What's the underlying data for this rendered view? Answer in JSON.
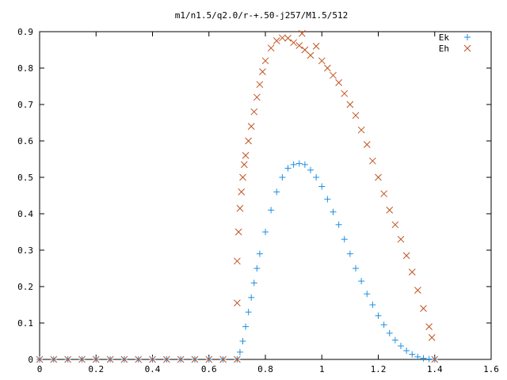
{
  "chart_data": {
    "type": "scatter",
    "title": "m1/n1.5/q2.0/r-+.50-j257/M1.5/512",
    "xlabel": "",
    "ylabel": "",
    "xlim": [
      0,
      1.6
    ],
    "ylim": [
      0,
      0.9
    ],
    "xticks": [
      0,
      0.2,
      0.4,
      0.6,
      0.8,
      1,
      1.2,
      1.4,
      1.6
    ],
    "yticks": [
      0,
      0.1,
      0.2,
      0.3,
      0.4,
      0.5,
      0.6,
      0.7,
      0.8,
      0.9
    ],
    "xtick_labels": [
      "0",
      "0.2",
      "0.4",
      "0.6",
      "0.8",
      "1",
      "1.2",
      "1.4",
      "1.6"
    ],
    "ytick_labels": [
      "0",
      "0.1",
      "0.2",
      "0.3",
      "0.4",
      "0.5",
      "0.6",
      "0.7",
      "0.8",
      "0.9"
    ],
    "grid": false,
    "legend_position": "top-right",
    "series": [
      {
        "name": "Ek",
        "marker": "plus",
        "color": "#1f8fe0",
        "points": [
          [
            0.0,
            0.0
          ],
          [
            0.05,
            0.0
          ],
          [
            0.1,
            0.0
          ],
          [
            0.15,
            0.0
          ],
          [
            0.2,
            0.0
          ],
          [
            0.25,
            0.0
          ],
          [
            0.3,
            0.0
          ],
          [
            0.35,
            0.0
          ],
          [
            0.4,
            0.0
          ],
          [
            0.45,
            0.0
          ],
          [
            0.5,
            0.0
          ],
          [
            0.55,
            0.0
          ],
          [
            0.6,
            0.0
          ],
          [
            0.65,
            0.0
          ],
          [
            0.7,
            0.0
          ],
          [
            0.71,
            0.02
          ],
          [
            0.72,
            0.05
          ],
          [
            0.73,
            0.09
          ],
          [
            0.74,
            0.13
          ],
          [
            0.75,
            0.17
          ],
          [
            0.76,
            0.21
          ],
          [
            0.77,
            0.25
          ],
          [
            0.78,
            0.29
          ],
          [
            0.8,
            0.35
          ],
          [
            0.82,
            0.41
          ],
          [
            0.84,
            0.46
          ],
          [
            0.86,
            0.5
          ],
          [
            0.88,
            0.525
          ],
          [
            0.9,
            0.535
          ],
          [
            0.92,
            0.538
          ],
          [
            0.94,
            0.535
          ],
          [
            0.96,
            0.52
          ],
          [
            0.98,
            0.5
          ],
          [
            1.0,
            0.475
          ],
          [
            1.02,
            0.44
          ],
          [
            1.04,
            0.405
          ],
          [
            1.06,
            0.37
          ],
          [
            1.08,
            0.33
          ],
          [
            1.1,
            0.29
          ],
          [
            1.12,
            0.25
          ],
          [
            1.14,
            0.215
          ],
          [
            1.16,
            0.18
          ],
          [
            1.18,
            0.15
          ],
          [
            1.2,
            0.12
          ],
          [
            1.22,
            0.095
          ],
          [
            1.24,
            0.072
          ],
          [
            1.26,
            0.053
          ],
          [
            1.28,
            0.037
          ],
          [
            1.3,
            0.024
          ],
          [
            1.32,
            0.014
          ],
          [
            1.34,
            0.007
          ],
          [
            1.36,
            0.003
          ],
          [
            1.38,
            0.001
          ],
          [
            1.4,
            0.0
          ]
        ]
      },
      {
        "name": "Eh",
        "marker": "cross",
        "color": "#c0501e",
        "points": [
          [
            0.0,
            0.0
          ],
          [
            0.05,
            0.0
          ],
          [
            0.1,
            0.0
          ],
          [
            0.15,
            0.0
          ],
          [
            0.2,
            0.0
          ],
          [
            0.25,
            0.0
          ],
          [
            0.3,
            0.0
          ],
          [
            0.35,
            0.0
          ],
          [
            0.4,
            0.0
          ],
          [
            0.45,
            0.0
          ],
          [
            0.5,
            0.0
          ],
          [
            0.55,
            0.0
          ],
          [
            0.6,
            0.0
          ],
          [
            0.65,
            0.0
          ],
          [
            0.7,
            0.0
          ],
          [
            0.7,
            0.155
          ],
          [
            0.7,
            0.27
          ],
          [
            0.705,
            0.35
          ],
          [
            0.71,
            0.415
          ],
          [
            0.715,
            0.46
          ],
          [
            0.72,
            0.5
          ],
          [
            0.725,
            0.535
          ],
          [
            0.73,
            0.56
          ],
          [
            0.74,
            0.6
          ],
          [
            0.75,
            0.64
          ],
          [
            0.76,
            0.68
          ],
          [
            0.77,
            0.72
          ],
          [
            0.78,
            0.755
          ],
          [
            0.79,
            0.79
          ],
          [
            0.8,
            0.82
          ],
          [
            0.82,
            0.855
          ],
          [
            0.84,
            0.875
          ],
          [
            0.86,
            0.883
          ],
          [
            0.88,
            0.882
          ],
          [
            0.9,
            0.87
          ],
          [
            0.92,
            0.862
          ],
          [
            0.93,
            0.895
          ],
          [
            0.94,
            0.85
          ],
          [
            0.96,
            0.835
          ],
          [
            0.98,
            0.86
          ],
          [
            1.0,
            0.82
          ],
          [
            1.02,
            0.8
          ],
          [
            1.04,
            0.78
          ],
          [
            1.06,
            0.76
          ],
          [
            1.08,
            0.73
          ],
          [
            1.1,
            0.7
          ],
          [
            1.12,
            0.67
          ],
          [
            1.14,
            0.63
          ],
          [
            1.16,
            0.59
          ],
          [
            1.18,
            0.545
          ],
          [
            1.2,
            0.5
          ],
          [
            1.22,
            0.455
          ],
          [
            1.24,
            0.41
          ],
          [
            1.26,
            0.37
          ],
          [
            1.28,
            0.33
          ],
          [
            1.3,
            0.285
          ],
          [
            1.32,
            0.24
          ],
          [
            1.34,
            0.19
          ],
          [
            1.36,
            0.14
          ],
          [
            1.38,
            0.09
          ],
          [
            1.39,
            0.06
          ],
          [
            1.4,
            0.0
          ]
        ]
      }
    ]
  }
}
